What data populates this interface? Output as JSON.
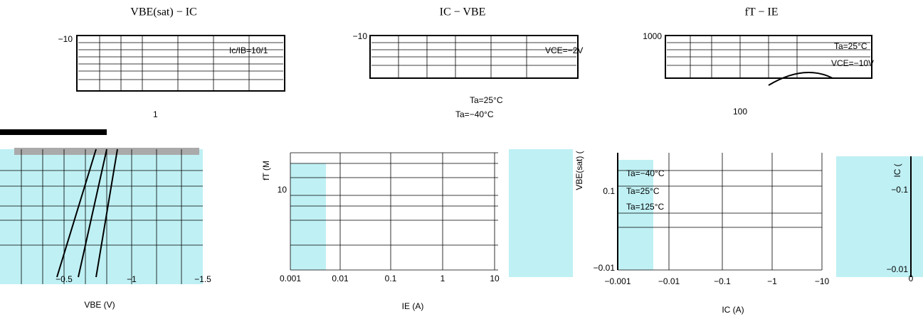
{
  "titles": [
    "VBE(sat)  −  IC",
    "IC  −  VBE",
    "fT  −  IE"
  ],
  "top": {
    "ticks": [
      "−10",
      "−10",
      "1000"
    ],
    "legends": [
      "Ic/IB=10/1",
      "VCE=−2V",
      "Ta=25°C",
      "VCE=−10V"
    ]
  },
  "middle": {
    "texts": [
      "Ta=25°C",
      "Ta=−40°C",
      "1",
      "100"
    ]
  },
  "left": {
    "x_ticks": [
      "−0.5",
      "−1",
      "−1.5"
    ],
    "x_label": "VBE (V)"
  },
  "center": {
    "x_ticks": [
      "0.001",
      "0.01",
      "0.1",
      "1",
      "10"
    ],
    "x_label": "IE (A)",
    "y_tick": "10",
    "y_label": "fT (M"
  },
  "right": {
    "x_ticks": [
      "−0.001",
      "−0.01",
      "−0.1",
      "−1",
      "−10"
    ],
    "x_label": "IC (A)",
    "y_ticks": [
      "0.1",
      "−0.01"
    ],
    "y_label": "VBE(sat) (",
    "legend": [
      "Ta=−40°C",
      "Ta=25°C",
      "Ta=125°C"
    ]
  },
  "edge": {
    "x_tick": "0",
    "y_ticks": [
      "−0.1",
      "−0.01"
    ],
    "y_label": "IC ("
  }
}
